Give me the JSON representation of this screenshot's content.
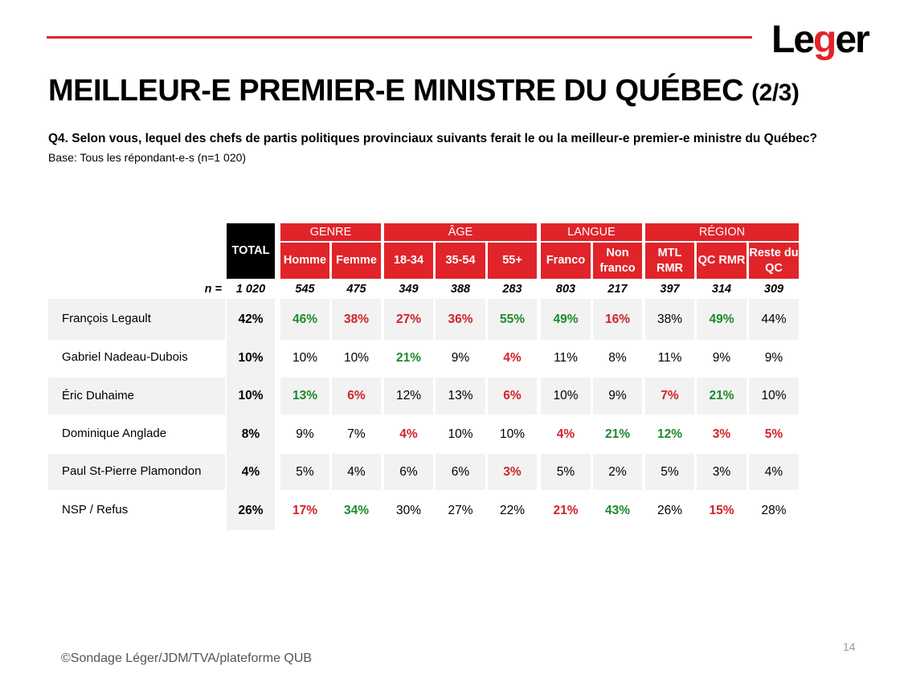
{
  "logo": {
    "text_before": "Le",
    "text_mark": "g",
    "text_after": "er"
  },
  "title": {
    "main": "MEILLEUR-E PREMIER-E MINISTRE DU QUÉBEC",
    "sub": "(2/3)"
  },
  "question": "Q4. Selon vous, lequel des chefs de partis politiques provinciaux suivants ferait le ou la meilleur-e premier-e ministre du Québec?",
  "base": "Base: Tous les répondant-e-s (n=1 020)",
  "table": {
    "total_label": "TOTAL",
    "groups": [
      "GENRE",
      "ÂGE",
      "LANGUE",
      "RÉGION"
    ],
    "columns": [
      "Homme",
      "Femme",
      "18-34",
      "35-54",
      "55+",
      "Franco",
      "Non franco",
      "MTL RMR",
      "QC RMR",
      "Reste du QC"
    ],
    "n_label": "n =",
    "n_values": [
      "1 020",
      "545",
      "475",
      "349",
      "388",
      "283",
      "803",
      "217",
      "397",
      "314",
      "309"
    ],
    "rows": [
      {
        "label": "François Legault",
        "total": "42%",
        "values": [
          "46%",
          "38%",
          "27%",
          "36%",
          "55%",
          "49%",
          "16%",
          "38%",
          "49%",
          "44%"
        ],
        "sig": [
          "pos",
          "neg",
          "neg",
          "neg",
          "pos",
          "pos",
          "neg",
          "",
          "pos",
          ""
        ]
      },
      {
        "label": "Gabriel Nadeau-Dubois",
        "total": "10%",
        "values": [
          "10%",
          "10%",
          "21%",
          "9%",
          "4%",
          "11%",
          "8%",
          "11%",
          "9%",
          "9%"
        ],
        "sig": [
          "",
          "",
          "pos",
          "",
          "neg",
          "",
          "",
          "",
          "",
          ""
        ]
      },
      {
        "label": "Éric Duhaime",
        "total": "10%",
        "values": [
          "13%",
          "6%",
          "12%",
          "13%",
          "6%",
          "10%",
          "9%",
          "7%",
          "21%",
          "10%"
        ],
        "sig": [
          "pos",
          "neg",
          "",
          "",
          "neg",
          "",
          "",
          "neg",
          "pos",
          ""
        ]
      },
      {
        "label": "Dominique Anglade",
        "total": "8%",
        "values": [
          "9%",
          "7%",
          "4%",
          "10%",
          "10%",
          "4%",
          "21%",
          "12%",
          "3%",
          "5%"
        ],
        "sig": [
          "",
          "",
          "neg",
          "",
          "",
          "neg",
          "pos",
          "pos",
          "neg",
          "neg"
        ]
      },
      {
        "label": "Paul St-Pierre Plamondon",
        "total": "4%",
        "values": [
          "5%",
          "4%",
          "6%",
          "6%",
          "3%",
          "5%",
          "2%",
          "5%",
          "3%",
          "4%"
        ],
        "sig": [
          "",
          "",
          "",
          "",
          "neg",
          "",
          "",
          "",
          "",
          ""
        ]
      },
      {
        "label": "NSP / Refus",
        "total": "26%",
        "values": [
          "17%",
          "34%",
          "30%",
          "27%",
          "22%",
          "21%",
          "43%",
          "26%",
          "15%",
          "28%"
        ],
        "sig": [
          "neg",
          "pos",
          "",
          "",
          "",
          "neg",
          "pos",
          "",
          "neg",
          ""
        ]
      }
    ]
  },
  "footer": "©Sondage Léger/JDM/TVA/plateforme QUB",
  "page_number": "14",
  "colors": {
    "accent": "#e0242a",
    "positive": "#1e8a2e",
    "negative": "#d0232a"
  }
}
